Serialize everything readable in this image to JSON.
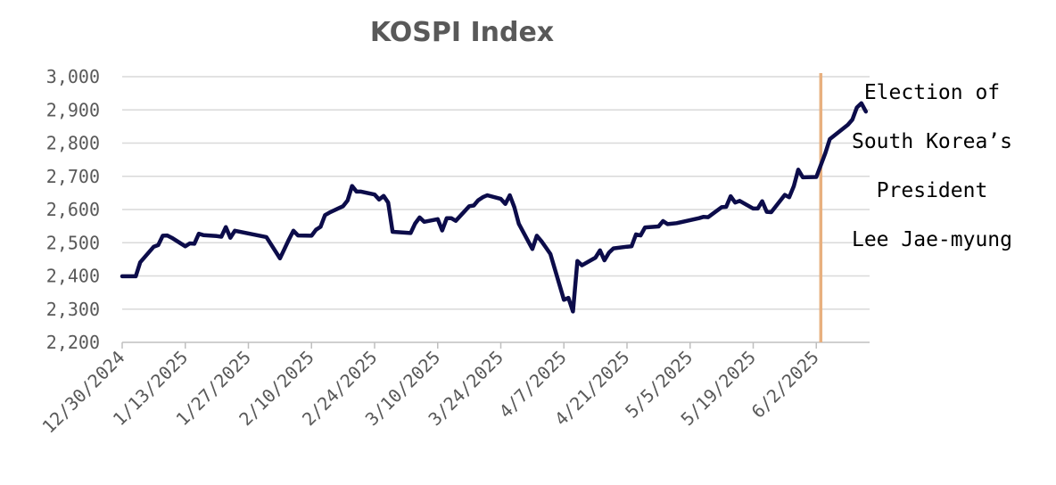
{
  "chart_data": {
    "type": "line",
    "title": "KOSPI Index",
    "xlabel": "",
    "ylabel": "",
    "ylim": [
      2200,
      3000
    ],
    "y_ticks": [
      "2,200",
      "2,300",
      "2,400",
      "2,500",
      "2,600",
      "2,700",
      "2,800",
      "2,900",
      "3,000"
    ],
    "x_ticks": [
      "12/30/2024",
      "1/13/2025",
      "1/27/2025",
      "2/10/2025",
      "2/24/2025",
      "3/10/2025",
      "3/24/2025",
      "4/7/2025",
      "4/21/2025",
      "5/5/2025",
      "5/19/2025",
      "6/2/2025"
    ],
    "x_range": [
      "2024-12-30",
      "2025-06-12"
    ],
    "grid": "horizontal",
    "series": [
      {
        "color": "#0c0c4a",
        "points": [
          [
            "2024-12-30",
            2399
          ],
          [
            "2025-01-02",
            2399
          ],
          [
            "2025-01-03",
            2441
          ],
          [
            "2025-01-06",
            2488
          ],
          [
            "2025-01-07",
            2493
          ],
          [
            "2025-01-08",
            2521
          ],
          [
            "2025-01-09",
            2522
          ],
          [
            "2025-01-10",
            2515
          ],
          [
            "2025-01-13",
            2489
          ],
          [
            "2025-01-14",
            2498
          ],
          [
            "2025-01-15",
            2497
          ],
          [
            "2025-01-16",
            2527
          ],
          [
            "2025-01-17",
            2523
          ],
          [
            "2025-01-20",
            2520
          ],
          [
            "2025-01-21",
            2518
          ],
          [
            "2025-01-22",
            2547
          ],
          [
            "2025-01-23",
            2515
          ],
          [
            "2025-01-24",
            2536
          ],
          [
            "2025-01-31",
            2517
          ],
          [
            "2025-02-03",
            2453
          ],
          [
            "2025-02-04",
            2481
          ],
          [
            "2025-02-05",
            2510
          ],
          [
            "2025-02-06",
            2536
          ],
          [
            "2025-02-07",
            2522
          ],
          [
            "2025-02-10",
            2521
          ],
          [
            "2025-02-11",
            2539
          ],
          [
            "2025-02-12",
            2548
          ],
          [
            "2025-02-13",
            2583
          ],
          [
            "2025-02-14",
            2591
          ],
          [
            "2025-02-17",
            2610
          ],
          [
            "2025-02-18",
            2627
          ],
          [
            "2025-02-19",
            2671
          ],
          [
            "2025-02-20",
            2654
          ],
          [
            "2025-02-21",
            2654
          ],
          [
            "2025-02-24",
            2645
          ],
          [
            "2025-02-25",
            2630
          ],
          [
            "2025-02-26",
            2641
          ],
          [
            "2025-02-27",
            2621
          ],
          [
            "2025-02-28",
            2533
          ],
          [
            "2025-03-04",
            2529
          ],
          [
            "2025-03-05",
            2558
          ],
          [
            "2025-03-06",
            2576
          ],
          [
            "2025-03-07",
            2563
          ],
          [
            "2025-03-10",
            2571
          ],
          [
            "2025-03-11",
            2537
          ],
          [
            "2025-03-12",
            2574
          ],
          [
            "2025-03-13",
            2574
          ],
          [
            "2025-03-14",
            2566
          ],
          [
            "2025-03-17",
            2610
          ],
          [
            "2025-03-18",
            2612
          ],
          [
            "2025-03-19",
            2628
          ],
          [
            "2025-03-20",
            2637
          ],
          [
            "2025-03-21",
            2643
          ],
          [
            "2025-03-24",
            2632
          ],
          [
            "2025-03-25",
            2617
          ],
          [
            "2025-03-26",
            2643
          ],
          [
            "2025-03-27",
            2607
          ],
          [
            "2025-03-28",
            2557
          ],
          [
            "2025-03-31",
            2481
          ],
          [
            "2025-04-01",
            2521
          ],
          [
            "2025-04-02",
            2505
          ],
          [
            "2025-04-03",
            2486
          ],
          [
            "2025-04-04",
            2466
          ],
          [
            "2025-04-07",
            2328
          ],
          [
            "2025-04-08",
            2334
          ],
          [
            "2025-04-09",
            2293
          ],
          [
            "2025-04-10",
            2445
          ],
          [
            "2025-04-11",
            2432
          ],
          [
            "2025-04-14",
            2455
          ],
          [
            "2025-04-15",
            2477
          ],
          [
            "2025-04-16",
            2447
          ],
          [
            "2025-04-17",
            2470
          ],
          [
            "2025-04-18",
            2483
          ],
          [
            "2025-04-21",
            2488
          ],
          [
            "2025-04-22",
            2489
          ],
          [
            "2025-04-23",
            2525
          ],
          [
            "2025-04-24",
            2522
          ],
          [
            "2025-04-25",
            2546
          ],
          [
            "2025-04-28",
            2549
          ],
          [
            "2025-04-29",
            2565
          ],
          [
            "2025-04-30",
            2556
          ],
          [
            "2025-05-02",
            2559
          ],
          [
            "2025-05-07",
            2574
          ],
          [
            "2025-05-08",
            2578
          ],
          [
            "2025-05-09",
            2577
          ],
          [
            "2025-05-12",
            2607
          ],
          [
            "2025-05-13",
            2608
          ],
          [
            "2025-05-14",
            2640
          ],
          [
            "2025-05-15",
            2621
          ],
          [
            "2025-05-16",
            2626
          ],
          [
            "2025-05-19",
            2603
          ],
          [
            "2025-05-20",
            2603
          ],
          [
            "2025-05-21",
            2625
          ],
          [
            "2025-05-22",
            2593
          ],
          [
            "2025-05-23",
            2592
          ],
          [
            "2025-05-26",
            2644
          ],
          [
            "2025-05-27",
            2637
          ],
          [
            "2025-05-28",
            2670
          ],
          [
            "2025-05-29",
            2720
          ],
          [
            "2025-05-30",
            2697
          ],
          [
            "2025-06-02",
            2698
          ],
          [
            "2025-06-04",
            2770
          ],
          [
            "2025-06-05",
            2812
          ],
          [
            "2025-06-09",
            2855
          ],
          [
            "2025-06-10",
            2871
          ],
          [
            "2025-06-11",
            2907
          ],
          [
            "2025-06-12",
            2920
          ],
          [
            "2025-06-13",
            2895
          ]
        ]
      }
    ],
    "event_line": {
      "date": "2025-06-03",
      "color": "#e8b07f"
    },
    "annotation": [
      "Election of",
      "South Korea’s",
      "President",
      "Lee Jae-myung"
    ],
    "grid_color": "#d9d9d9",
    "axis_color": "#bfbfbf"
  }
}
